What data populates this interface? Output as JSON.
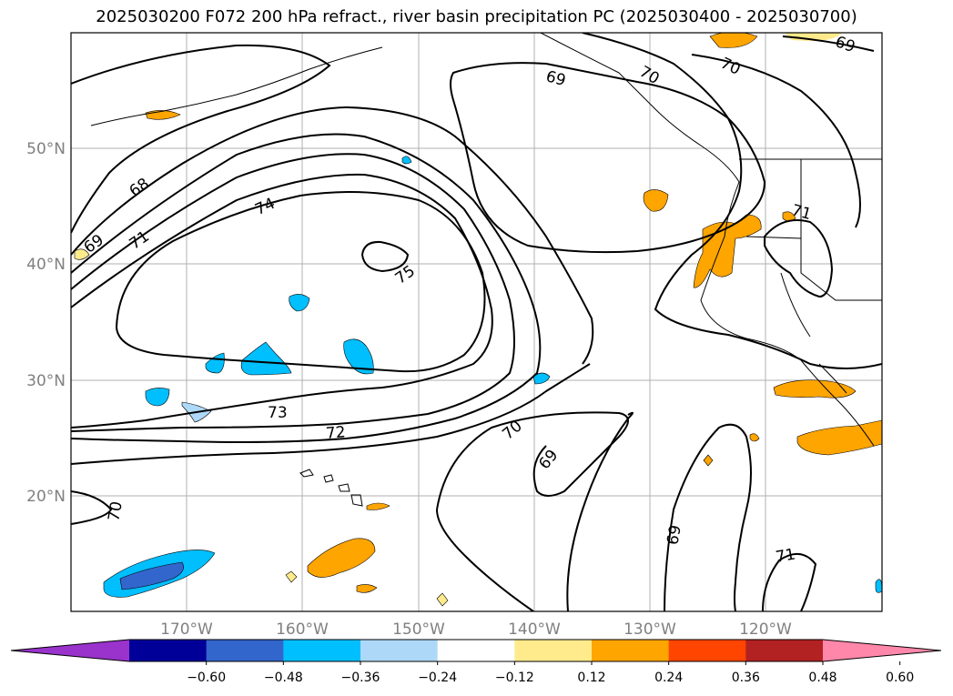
{
  "title": "2025030200 F072 200 hPa refract., river basin precipitation PC (2025030400 - 2025030700)",
  "lat_labels": [
    "50°N",
    "40°N",
    "30°N",
    "20°N"
  ],
  "lon_labels": [
    "170°W",
    "160°W",
    "150°W",
    "140°W",
    "130°W",
    "120°W"
  ],
  "contour_labels": [
    "69",
    "70",
    "70",
    "69",
    "68",
    "69",
    "71",
    "74",
    "75",
    "71",
    "73",
    "72",
    "70",
    "69",
    "70",
    "69",
    "71"
  ],
  "colorbar": {
    "colors": [
      "#9933cc",
      "#000099",
      "#3366cc",
      "#00bfff",
      "#add8f7",
      "#ffffff",
      "#ffeb8c",
      "#ffa500",
      "#ff4500",
      "#b22222",
      "#ff88aa"
    ],
    "tick_labels": [
      "−0.60",
      "−0.48",
      "−0.36",
      "−0.24",
      "−0.12",
      "0.12",
      "0.24",
      "0.36",
      "0.48",
      "0.60"
    ]
  },
  "colors": {
    "grid": "#b0b0b0",
    "contour": "#000000",
    "positive_light": "#ffeb8c",
    "positive_mid": "#ffa500",
    "negative_light": "#add8f7",
    "negative_mid": "#00bfff",
    "negative_dark": "#3366cc"
  }
}
